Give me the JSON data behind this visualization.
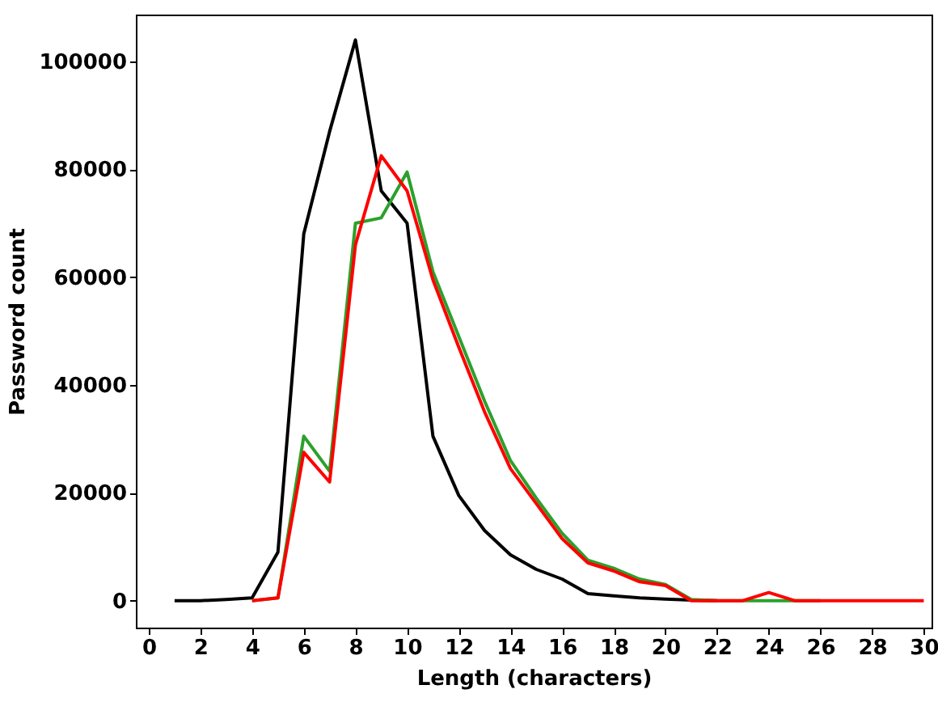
{
  "chart_data": {
    "type": "line",
    "xlabel": "Length (characters)",
    "ylabel": "Password count",
    "xlim": [
      -0.5,
      30.3
    ],
    "xticks": [
      0,
      2,
      4,
      6,
      8,
      10,
      12,
      14,
      16,
      18,
      20,
      22,
      24,
      26,
      28,
      30
    ],
    "ylim": [
      -5000,
      108700
    ],
    "yticks": [
      0,
      20000,
      40000,
      60000,
      80000,
      100000
    ],
    "grid": false,
    "series": [
      {
        "color": "#000000",
        "x": [
          1,
          2,
          3,
          4,
          5,
          6,
          7,
          8,
          9,
          10,
          11,
          12,
          13,
          14,
          15,
          16,
          17,
          18,
          19,
          20,
          21,
          22
        ],
        "values": [
          0,
          0,
          200,
          500,
          9000,
          68000,
          87000,
          104000,
          76000,
          70000,
          30500,
          19500,
          13000,
          8500,
          5800,
          4000,
          1300,
          900,
          500,
          300,
          100,
          0
        ]
      },
      {
        "color": "#2ca02c",
        "x": [
          4,
          5,
          6,
          7,
          8,
          9,
          10,
          11,
          12,
          13,
          14,
          15,
          16,
          17,
          18,
          19,
          20,
          21,
          22,
          23,
          24,
          25,
          26
        ],
        "values": [
          0,
          500,
          30500,
          24000,
          70000,
          71000,
          79500,
          61000,
          49000,
          37000,
          26000,
          19000,
          12500,
          7500,
          6000,
          4000,
          3000,
          200,
          0,
          0,
          0,
          0,
          0
        ]
      },
      {
        "color": "#ff0000",
        "x": [
          4,
          5,
          6,
          7,
          8,
          9,
          10,
          11,
          12,
          13,
          14,
          15,
          16,
          17,
          18,
          19,
          20,
          21,
          22,
          23,
          24,
          25,
          26,
          27,
          28,
          29,
          30
        ],
        "values": [
          0,
          500,
          27500,
          22000,
          66000,
          82500,
          76000,
          59500,
          47000,
          35000,
          24500,
          18000,
          11500,
          7000,
          5500,
          3500,
          2800,
          0,
          0,
          0,
          1500,
          0,
          0,
          0,
          0,
          0,
          0
        ]
      }
    ]
  }
}
